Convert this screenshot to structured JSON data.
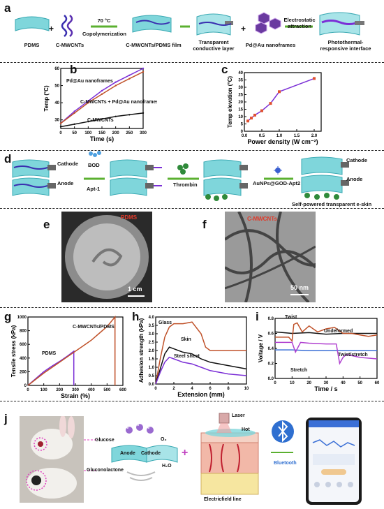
{
  "panels": {
    "a": "a",
    "b": "b",
    "c": "c",
    "d": "d",
    "e": "e",
    "f": "f",
    "g": "g",
    "h": "h",
    "i": "i",
    "j": "j"
  },
  "panel_a": {
    "pdms": "PDMS",
    "plus1": "+",
    "cmwcnts": "C-MWCNTs",
    "temp": "70 °C",
    "copolymerization": "Copolymerization",
    "film": "C-MWCNTs/PDMS film",
    "transparent_layer": "Transparent conductive layer",
    "plus2": "+",
    "nanoframes": "Pd@Au nanoframes",
    "electrostatic": "Electrostatic attraction",
    "interface": "Photothermal-responsive interface"
  },
  "panel_d": {
    "cathode1": "Cathode",
    "anode1": "Anode",
    "bod": "BOD",
    "apt1": "Apt-1",
    "thrombin": "Thrombin",
    "aunps": "AuNPs@GOD-Apt2",
    "cathode2": "Cathode",
    "anode2": "Anode",
    "eskin": "Self-powered transparent e-skin"
  },
  "panel_e": {
    "label": "PDMS",
    "scale": "1 cm"
  },
  "panel_f": {
    "label": "C-MWCNTs",
    "scale": "50 nm"
  },
  "panel_j": {
    "glucose": "Glucose",
    "gluconolactone": "Gluconolactone",
    "anode": "Anode",
    "cathode": "Cathode",
    "o2": "O₂",
    "h2o": "H₂O",
    "e": "e⁻",
    "plus": "+",
    "laser": "Laser",
    "hot": "Hot",
    "field_line": "Electricfield line",
    "bluetooth": "Bluetooth"
  },
  "colors": {
    "brown": "#c0522a",
    "purple": "#7b2fd6",
    "black": "#111111",
    "green": "#5bb030",
    "red_label": "#e03a2a",
    "teal": "#6fd0d8"
  },
  "chart_data": [
    {
      "id": "b",
      "type": "line",
      "xlabel": "Time (s)",
      "ylabel": "Temp (°C)",
      "xlim": [
        0,
        300
      ],
      "ylim": [
        25,
        60
      ],
      "xticks": [
        "0",
        "50",
        "100",
        "150",
        "200",
        "250",
        "300"
      ],
      "yticks": [
        "30",
        "40",
        "50",
        "60"
      ],
      "series": [
        {
          "name": "Pd@Au nanoframes",
          "color": "#7b2fd6",
          "x": [
            0,
            50,
            100,
            150,
            200,
            250,
            300
          ],
          "y": [
            28,
            35,
            41,
            47,
            52,
            56,
            60
          ]
        },
        {
          "name": "C-MWCNTs + Pd@Au nanoframes",
          "color": "#c0522a",
          "x": [
            0,
            50,
            100,
            150,
            200,
            250,
            300
          ],
          "y": [
            28,
            34,
            40,
            45,
            50,
            54,
            58
          ]
        },
        {
          "name": "C-MWCNTs",
          "color": "#111111",
          "x": [
            0,
            50,
            100,
            150,
            200,
            250,
            300
          ],
          "y": [
            26,
            27.5,
            29,
            30.5,
            32,
            33,
            34
          ]
        }
      ]
    },
    {
      "id": "c",
      "type": "line",
      "xlabel": "Power density (W cm⁻²)",
      "ylabel": "Temp elevation (°C)",
      "xlim": [
        0,
        2.2
      ],
      "ylim": [
        0,
        40
      ],
      "xticks": [
        "0.0",
        "0.5",
        "1.0",
        "1.5",
        "2.0"
      ],
      "yticks": [
        "0",
        "5",
        "10",
        "15",
        "20",
        "25",
        "30",
        "35",
        "40"
      ],
      "series": [
        {
          "name": "",
          "color": "#7b2fd6",
          "x": [
            0.1,
            0.2,
            0.3,
            0.5,
            0.75,
            1.0,
            2.0
          ],
          "y": [
            7,
            9,
            11,
            14,
            19,
            27,
            36
          ]
        }
      ]
    },
    {
      "id": "g",
      "type": "line",
      "xlabel": "Strain (%)",
      "ylabel": "Tensile stress (kPa)",
      "xlim": [
        0,
        600
      ],
      "ylim": [
        0,
        1000
      ],
      "xticks": [
        "0",
        "100",
        "200",
        "300",
        "400",
        "500",
        "600"
      ],
      "yticks": [
        "0",
        "200",
        "400",
        "600",
        "800",
        "1000"
      ],
      "series": [
        {
          "name": "PDMS",
          "color": "#7b2fd6",
          "x": [
            0,
            50,
            100,
            150,
            200,
            250,
            290,
            290
          ],
          "y": [
            0,
            100,
            200,
            280,
            350,
            430,
            500,
            0
          ]
        },
        {
          "name": "C-MWCNTs/PDMS",
          "color": "#c0522a",
          "x": [
            0,
            100,
            200,
            300,
            350,
            400,
            450,
            500,
            550,
            550
          ],
          "y": [
            0,
            180,
            340,
            500,
            580,
            660,
            760,
            860,
            1000,
            0
          ]
        }
      ]
    },
    {
      "id": "h",
      "type": "line",
      "xlabel": "Extension (mm)",
      "ylabel": "Adhesion strength (kPa)",
      "xlim": [
        0,
        10
      ],
      "ylim": [
        0,
        4.0
      ],
      "xticks": [
        "0",
        "2",
        "4",
        "6",
        "8",
        "10"
      ],
      "yticks": [
        "0.0",
        "0.5",
        "1.0",
        "1.5",
        "2.0",
        "2.5",
        "3.0",
        "3.5",
        "4.0"
      ],
      "series": [
        {
          "name": "Glass",
          "color": "#c0522a",
          "x": [
            0,
            0.5,
            1,
            1.5,
            2,
            3,
            4,
            5,
            5.5,
            6,
            8,
            10
          ],
          "y": [
            0,
            1.5,
            2.8,
            3.4,
            3.6,
            3.6,
            3.7,
            3.0,
            2.2,
            2.0,
            2.0,
            2.0
          ]
        },
        {
          "name": "Skin",
          "color": "#111111",
          "x": [
            0,
            0.5,
            1,
            1.5,
            2,
            3,
            4,
            5,
            6,
            8,
            10
          ],
          "y": [
            0,
            0.9,
            1.8,
            2.2,
            2.1,
            1.9,
            1.8,
            1.5,
            1.3,
            1.1,
            0.9
          ]
        },
        {
          "name": "Steel sheet",
          "color": "#7b2fd6",
          "x": [
            0,
            0.5,
            1,
            1.5,
            2,
            3,
            4,
            5,
            6,
            8,
            10
          ],
          "y": [
            0,
            0.7,
            1.3,
            1.6,
            1.5,
            1.3,
            1.2,
            1.0,
            0.8,
            0.6,
            0.5
          ]
        }
      ]
    },
    {
      "id": "i",
      "type": "line",
      "xlabel": "Time / s",
      "ylabel": "Voltage / V",
      "xlim": [
        0,
        60
      ],
      "ylim": [
        0,
        0.8
      ],
      "xticks": [
        "0",
        "10",
        "20",
        "30",
        "40",
        "50",
        "60"
      ],
      "yticks": [
        "0.0",
        "0.2",
        "0.4",
        "0.6",
        "0.8"
      ],
      "annotations": [
        "Twist",
        "Undeformed",
        "Stretch",
        "Twist/stretch"
      ],
      "series": [
        {
          "name": "Undeformed",
          "color": "#111111",
          "x": [
            0,
            10,
            20,
            30,
            40,
            50,
            60
          ],
          "y": [
            0.62,
            0.6,
            0.61,
            0.59,
            0.6,
            0.6,
            0.6
          ]
        },
        {
          "name": "Twist",
          "color": "#c0522a",
          "x": [
            0,
            8,
            10,
            11,
            13,
            16,
            20,
            25,
            30,
            35,
            40,
            45,
            50,
            55,
            60
          ],
          "y": [
            0.55,
            0.55,
            0.5,
            0.72,
            0.74,
            0.62,
            0.7,
            0.62,
            0.66,
            0.68,
            0.6,
            0.6,
            0.58,
            0.56,
            0.58
          ]
        },
        {
          "name": "Stretch",
          "color": "#3a6fd6",
          "x": [
            0,
            10,
            20,
            30,
            40,
            50,
            60
          ],
          "y": [
            0.38,
            0.38,
            0.37,
            0.37,
            0.37,
            0.37,
            0.37
          ]
        },
        {
          "name": "Twist/stretch",
          "color": "#b040d0",
          "x": [
            0,
            10,
            12,
            15,
            20,
            30,
            36,
            38,
            40,
            42,
            50,
            60
          ],
          "y": [
            0.48,
            0.48,
            0.35,
            0.48,
            0.47,
            0.46,
            0.46,
            0.2,
            0.28,
            0.32,
            0.28,
            0.26
          ]
        }
      ]
    }
  ]
}
